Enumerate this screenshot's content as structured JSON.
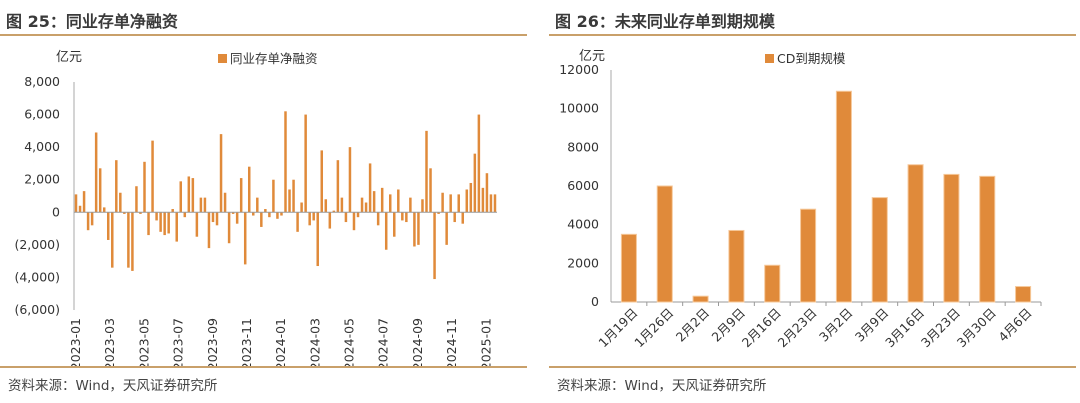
{
  "figures": [
    {
      "title": "图 25：同业存单净融资",
      "source": "资料来源：Wind，天风证券研究所",
      "unit": "亿元"
    },
    {
      "title": "图 26：未来同业存单到期规模",
      "source": "资料来源：Wind，天风证券研究所",
      "unit": "亿元"
    }
  ],
  "chart_data": [
    {
      "type": "bar",
      "title": "",
      "ylabel": "亿元",
      "legend": "同业存单净融资",
      "legend_position": "top-center",
      "color": "#E08A3A",
      "ylim": [
        -6000,
        8000
      ],
      "yticks": [
        8000,
        6000,
        4000,
        2000,
        0,
        -2000,
        -4000,
        -6000
      ],
      "ytick_labels": [
        "8,000",
        "6,000",
        "4,000",
        "2,000",
        "0",
        "(2,000)",
        "(4,000)",
        "(6,000)"
      ],
      "xtick_labels": [
        "2023-01",
        "2023-03",
        "2023-05",
        "2023-07",
        "2023-09",
        "2023-11",
        "2024-01",
        "2024-03",
        "2024-05",
        "2024-07",
        "2024-09",
        "2024-11",
        "2025-01"
      ],
      "values": [
        1100,
        400,
        1300,
        -1100,
        -800,
        4900,
        2700,
        300,
        -1700,
        -3400,
        3200,
        1200,
        -100,
        -3400,
        -3600,
        1600,
        -100,
        3100,
        -1400,
        4400,
        -500,
        -1200,
        -1400,
        -1300,
        200,
        -1800,
        1900,
        -300,
        2200,
        2100,
        -1500,
        900,
        900,
        -2200,
        -600,
        -800,
        4800,
        1200,
        -1900,
        -100,
        -700,
        2100,
        -3200,
        2800,
        -200,
        900,
        -900,
        200,
        -300,
        2000,
        -400,
        -200,
        6200,
        1400,
        2000,
        -1200,
        600,
        6000,
        -800,
        -500,
        -3300,
        3800,
        800,
        -1000,
        100,
        3200,
        900,
        -600,
        4000,
        -1100,
        -300,
        900,
        600,
        3000,
        1300,
        -800,
        1500,
        -2300,
        1100,
        -1500,
        1400,
        -500,
        -600,
        900,
        -2100,
        -2000,
        800,
        5000,
        2700,
        -4100,
        -100,
        1200,
        -2000,
        1100,
        -600,
        1100,
        -700,
        1400,
        1800,
        3600,
        6000,
        1500,
        2400,
        1100,
        1100
      ]
    },
    {
      "type": "bar",
      "title": "",
      "ylabel": "亿元",
      "legend": "CD到期规模",
      "legend_position": "top-center",
      "color": "#E08A3A",
      "ylim": [
        0,
        12000
      ],
      "yticks": [
        0,
        2000,
        4000,
        6000,
        8000,
        10000,
        12000
      ],
      "ytick_labels": [
        "0",
        "2000",
        "4000",
        "6000",
        "8000",
        "10000",
        "12000"
      ],
      "categories": [
        "1月19日",
        "1月26日",
        "2月2日",
        "2月9日",
        "2月16日",
        "2月23日",
        "3月2日",
        "3月9日",
        "3月16日",
        "3月23日",
        "3月30日",
        "4月6日"
      ],
      "values": [
        3500,
        6000,
        300,
        3700,
        1900,
        4800,
        10900,
        5400,
        7100,
        6600,
        6500,
        800
      ]
    }
  ]
}
